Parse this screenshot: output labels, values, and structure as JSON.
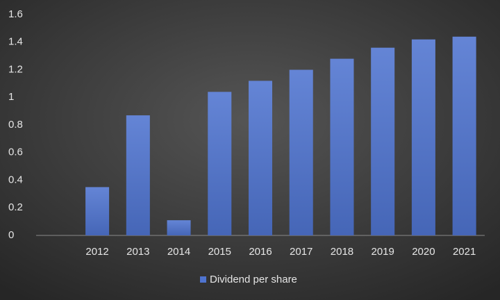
{
  "chart_data": {
    "type": "bar",
    "categories": [
      null,
      "2012",
      "2013",
      "2014",
      "2015",
      "2016",
      "2017",
      "2018",
      "2019",
      "2020",
      "2021"
    ],
    "series": [
      {
        "name": "Dividend per share",
        "color": "#4f74d0",
        "values": [
          null,
          0.35,
          0.87,
          0.11,
          1.04,
          1.12,
          1.2,
          1.28,
          1.36,
          1.42,
          1.44
        ]
      }
    ],
    "ylim": [
      0,
      1.6
    ],
    "yticks": [
      0,
      0.2,
      0.4,
      0.6,
      0.8,
      1,
      1.2,
      1.4,
      1.6
    ],
    "grid": false,
    "legend": "bottom"
  }
}
